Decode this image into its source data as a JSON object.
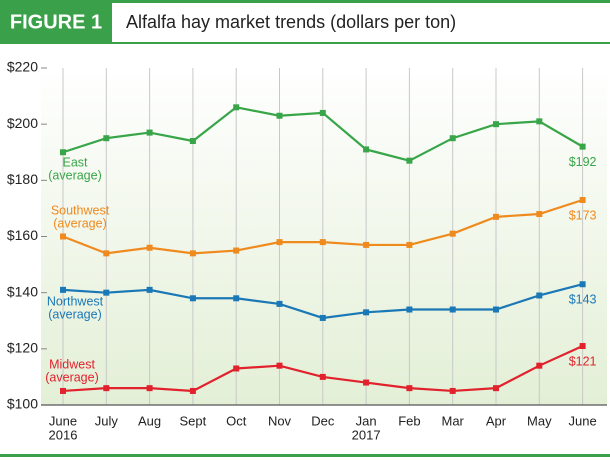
{
  "chart_data": {
    "type": "line",
    "figure_label": "FIGURE 1",
    "title": "Alfalfa hay market trends (dollars per ton)",
    "categories": [
      [
        "June",
        "2016"
      ],
      [
        "July"
      ],
      [
        "Aug"
      ],
      [
        "Sept"
      ],
      [
        "Oct"
      ],
      [
        "Nov"
      ],
      [
        "Dec"
      ],
      [
        "Jan",
        "2017"
      ],
      [
        "Feb"
      ],
      [
        "Mar"
      ],
      [
        "Apr"
      ],
      [
        "May"
      ],
      [
        "June"
      ]
    ],
    "ylim": [
      100,
      220
    ],
    "yticks": [
      {
        "value": 100,
        "label": "$100"
      },
      {
        "value": 120,
        "label": "$120"
      },
      {
        "value": 140,
        "label": "$140"
      },
      {
        "value": 160,
        "label": "$160"
      },
      {
        "value": 180,
        "label": "$180"
      },
      {
        "value": 200,
        "label": "$200"
      },
      {
        "value": 220,
        "label": "$220"
      }
    ],
    "series": [
      {
        "name": [
          "East",
          "(average)"
        ],
        "color": "#38a548",
        "values": [
          190,
          195,
          197,
          194,
          206,
          203,
          204,
          191,
          187,
          195,
          200,
          201,
          192
        ],
        "value_labels": [
          null,
          null,
          null,
          null,
          null,
          null,
          null,
          null,
          null,
          null,
          null,
          null,
          "$192"
        ]
      },
      {
        "name": [
          "Southwest",
          "(average)"
        ],
        "color": "#ef8a1f",
        "values": [
          160,
          154,
          156,
          154,
          155,
          158,
          158,
          157,
          157,
          161,
          167,
          168,
          173
        ],
        "value_labels": [
          null,
          null,
          null,
          null,
          null,
          null,
          null,
          null,
          null,
          null,
          null,
          null,
          "$173"
        ]
      },
      {
        "name": [
          "Northwest",
          "(average)"
        ],
        "color": "#1b78b6",
        "values": [
          141,
          140,
          141,
          138,
          138,
          136,
          131,
          133,
          134,
          134,
          134,
          139,
          143
        ],
        "value_labels": [
          null,
          null,
          null,
          null,
          null,
          null,
          null,
          null,
          null,
          null,
          null,
          null,
          "$143"
        ]
      },
      {
        "name": [
          "Midwest",
          "(average)"
        ],
        "color": "#e1222d",
        "values": [
          105,
          106,
          106,
          105,
          113,
          114,
          110,
          108,
          106,
          105,
          106,
          114,
          121
        ],
        "value_labels": [
          null,
          null,
          null,
          null,
          null,
          null,
          null,
          null,
          null,
          null,
          null,
          null,
          "$121"
        ]
      }
    ]
  }
}
